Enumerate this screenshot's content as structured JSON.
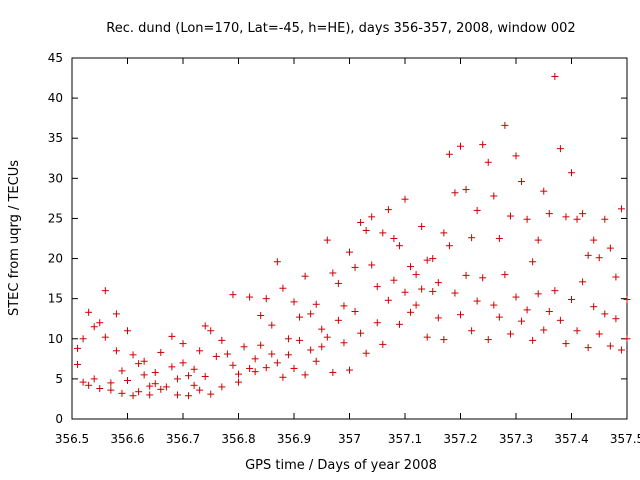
{
  "chart_data": {
    "type": "scatter",
    "title": "Rec. dund (Lon=170, Lat=-45, h=HE), days 356-357, 2008, window 002",
    "xlabel": "GPS time / Days of year 2008",
    "ylabel": "STEC from uqrg / TECUs",
    "xlim": [
      356.5,
      357.5
    ],
    "ylim": [
      0,
      45
    ],
    "xticks": [
      "356.5",
      "356.6",
      "356.7",
      "356.8",
      "356.9",
      "357",
      "357.1",
      "357.2",
      "357.3",
      "357.4",
      "357.5"
    ],
    "yticks": [
      "0",
      "5",
      "10",
      "15",
      "20",
      "25",
      "30",
      "35",
      "40",
      "45"
    ],
    "marker": "+",
    "marker_color": "#cc0000",
    "grid": false,
    "series": [
      {
        "points": [
          [
            356.51,
            8.8
          ],
          [
            356.51,
            6.8
          ],
          [
            356.52,
            4.6
          ],
          [
            356.52,
            10.0
          ],
          [
            356.53,
            13.3
          ],
          [
            356.53,
            4.2
          ],
          [
            356.54,
            11.5
          ],
          [
            356.54,
            5.0
          ],
          [
            356.55,
            12.0
          ],
          [
            356.55,
            3.8
          ],
          [
            356.56,
            16.0
          ],
          [
            356.56,
            10.2
          ],
          [
            356.57,
            4.5
          ],
          [
            356.57,
            3.6
          ],
          [
            356.58,
            13.1
          ],
          [
            356.58,
            8.5
          ],
          [
            356.59,
            3.2
          ],
          [
            356.59,
            6.0
          ],
          [
            356.6,
            11.0
          ],
          [
            356.6,
            4.8
          ],
          [
            356.61,
            8.0
          ],
          [
            356.61,
            2.9
          ],
          [
            356.62,
            6.9
          ],
          [
            356.62,
            3.4
          ],
          [
            356.63,
            7.2
          ],
          [
            356.63,
            5.5
          ],
          [
            356.64,
            4.1
          ],
          [
            356.64,
            3.0
          ],
          [
            356.65,
            5.8
          ],
          [
            356.65,
            4.4
          ],
          [
            356.66,
            8.3
          ],
          [
            356.66,
            3.7
          ],
          [
            356.67,
            4.0
          ],
          [
            356.68,
            10.3
          ],
          [
            356.68,
            6.5
          ],
          [
            356.69,
            5.0
          ],
          [
            356.69,
            3.0
          ],
          [
            356.7,
            9.4
          ],
          [
            356.7,
            7.0
          ],
          [
            356.71,
            5.4
          ],
          [
            356.71,
            2.9
          ],
          [
            356.72,
            4.2
          ],
          [
            356.72,
            6.2
          ],
          [
            356.73,
            8.5
          ],
          [
            356.73,
            3.6
          ],
          [
            356.74,
            11.6
          ],
          [
            356.74,
            5.3
          ],
          [
            356.75,
            3.1
          ],
          [
            356.75,
            11.0
          ],
          [
            356.76,
            7.8
          ],
          [
            356.77,
            9.8
          ],
          [
            356.77,
            4.0
          ],
          [
            356.78,
            8.1
          ],
          [
            356.79,
            15.5
          ],
          [
            356.79,
            6.7
          ],
          [
            356.8,
            5.6
          ],
          [
            356.8,
            4.6
          ],
          [
            356.81,
            9.0
          ],
          [
            356.82,
            15.2
          ],
          [
            356.82,
            6.3
          ],
          [
            356.83,
            7.5
          ],
          [
            356.83,
            5.9
          ],
          [
            356.84,
            12.9
          ],
          [
            356.84,
            9.2
          ],
          [
            356.85,
            15.0
          ],
          [
            356.85,
            6.4
          ],
          [
            356.86,
            11.7
          ],
          [
            356.86,
            8.1
          ],
          [
            356.87,
            19.6
          ],
          [
            356.87,
            7.0
          ],
          [
            356.88,
            16.3
          ],
          [
            356.88,
            5.2
          ],
          [
            356.89,
            10.0
          ],
          [
            356.89,
            8.0
          ],
          [
            356.9,
            14.6
          ],
          [
            356.9,
            6.3
          ],
          [
            356.91,
            12.7
          ],
          [
            356.91,
            9.8
          ],
          [
            356.92,
            17.8
          ],
          [
            356.92,
            5.5
          ],
          [
            356.93,
            13.1
          ],
          [
            356.93,
            8.6
          ],
          [
            356.94,
            14.3
          ],
          [
            356.94,
            7.2
          ],
          [
            356.95,
            11.2
          ],
          [
            356.95,
            9.0
          ],
          [
            356.96,
            22.3
          ],
          [
            356.96,
            10.2
          ],
          [
            356.97,
            18.2
          ],
          [
            356.97,
            5.8
          ],
          [
            356.98,
            16.9
          ],
          [
            356.98,
            12.3
          ],
          [
            356.99,
            14.1
          ],
          [
            356.99,
            9.5
          ],
          [
            357.0,
            20.8
          ],
          [
            357.0,
            6.1
          ],
          [
            357.01,
            18.9
          ],
          [
            357.01,
            13.4
          ],
          [
            357.02,
            24.5
          ],
          [
            357.02,
            10.7
          ],
          [
            357.03,
            23.5
          ],
          [
            357.03,
            8.2
          ],
          [
            357.04,
            25.2
          ],
          [
            357.04,
            19.2
          ],
          [
            357.05,
            16.5
          ],
          [
            357.05,
            12.0
          ],
          [
            357.06,
            23.2
          ],
          [
            357.06,
            9.3
          ],
          [
            357.07,
            26.1
          ],
          [
            357.07,
            14.8
          ],
          [
            357.08,
            22.5
          ],
          [
            357.08,
            17.3
          ],
          [
            357.09,
            21.6
          ],
          [
            357.09,
            11.8
          ],
          [
            357.1,
            27.4
          ],
          [
            357.1,
            15.8
          ],
          [
            357.11,
            19.0
          ],
          [
            357.11,
            13.3
          ],
          [
            357.12,
            18.0
          ],
          [
            357.12,
            14.2
          ],
          [
            357.13,
            24.0
          ],
          [
            357.13,
            16.2
          ],
          [
            357.14,
            19.8
          ],
          [
            357.14,
            10.2
          ],
          [
            357.15,
            20.0
          ],
          [
            357.15,
            15.9
          ],
          [
            357.16,
            17.0
          ],
          [
            357.16,
            12.6
          ],
          [
            357.17,
            23.2
          ],
          [
            357.17,
            9.9
          ],
          [
            357.18,
            33.0
          ],
          [
            357.18,
            21.6
          ],
          [
            357.19,
            28.2
          ],
          [
            357.19,
            15.7
          ],
          [
            357.2,
            34.0
          ],
          [
            357.2,
            13.0
          ],
          [
            357.21,
            28.6
          ],
          [
            357.21,
            17.9
          ],
          [
            357.22,
            22.6
          ],
          [
            357.22,
            11.0
          ],
          [
            357.23,
            26.0
          ],
          [
            357.23,
            14.7
          ],
          [
            357.24,
            34.2
          ],
          [
            357.24,
            17.6
          ],
          [
            357.25,
            32.0
          ],
          [
            357.25,
            9.9
          ],
          [
            357.26,
            27.8
          ],
          [
            357.26,
            14.2
          ],
          [
            357.27,
            22.5
          ],
          [
            357.27,
            12.7
          ],
          [
            357.28,
            36.6
          ],
          [
            357.28,
            18.0
          ],
          [
            357.29,
            25.3
          ],
          [
            357.29,
            10.6
          ],
          [
            357.3,
            32.8
          ],
          [
            357.3,
            15.2
          ],
          [
            357.31,
            29.6
          ],
          [
            357.31,
            12.2
          ],
          [
            357.32,
            24.9
          ],
          [
            357.32,
            13.6
          ],
          [
            357.33,
            19.6
          ],
          [
            357.33,
            9.8
          ],
          [
            357.34,
            22.3
          ],
          [
            357.34,
            15.6
          ],
          [
            357.35,
            28.4
          ],
          [
            357.35,
            11.1
          ],
          [
            357.36,
            25.6
          ],
          [
            357.36,
            13.4
          ],
          [
            357.37,
            42.7
          ],
          [
            357.37,
            16.0
          ],
          [
            357.38,
            33.7
          ],
          [
            357.38,
            12.3
          ],
          [
            357.39,
            25.2
          ],
          [
            357.39,
            9.4
          ],
          [
            357.4,
            30.7
          ],
          [
            357.4,
            14.9
          ],
          [
            357.41,
            24.9
          ],
          [
            357.41,
            11.0
          ],
          [
            357.42,
            25.6
          ],
          [
            357.42,
            17.1
          ],
          [
            357.43,
            20.4
          ],
          [
            357.43,
            8.9
          ],
          [
            357.44,
            22.3
          ],
          [
            357.44,
            14.0
          ],
          [
            357.45,
            20.1
          ],
          [
            357.45,
            10.6
          ],
          [
            357.46,
            24.9
          ],
          [
            357.46,
            13.1
          ],
          [
            357.47,
            21.3
          ],
          [
            357.47,
            9.1
          ],
          [
            357.48,
            17.7
          ],
          [
            357.48,
            12.5
          ],
          [
            357.49,
            26.2
          ],
          [
            357.49,
            8.6
          ],
          [
            357.5,
            14.9
          ],
          [
            357.5,
            10.0
          ]
        ]
      }
    ]
  }
}
